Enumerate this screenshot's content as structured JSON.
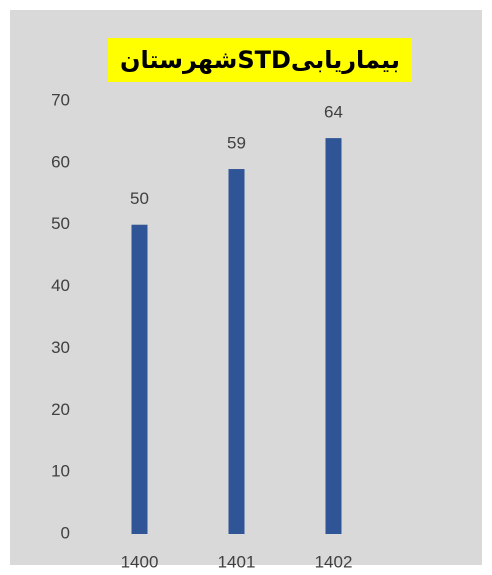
{
  "chart_data": {
    "type": "bar",
    "title": "بیماریابیSTDشهرستان",
    "categories": [
      "1400",
      "1401",
      "1402"
    ],
    "values": [
      50,
      59,
      64
    ],
    "color": "#2f5597",
    "ylim": [
      0,
      70
    ],
    "yticks": [
      0,
      10,
      20,
      30,
      40,
      50,
      60,
      70
    ],
    "grid": false,
    "data_labels": true,
    "background": "#d9d9d9",
    "title_background": "#ffff00"
  }
}
